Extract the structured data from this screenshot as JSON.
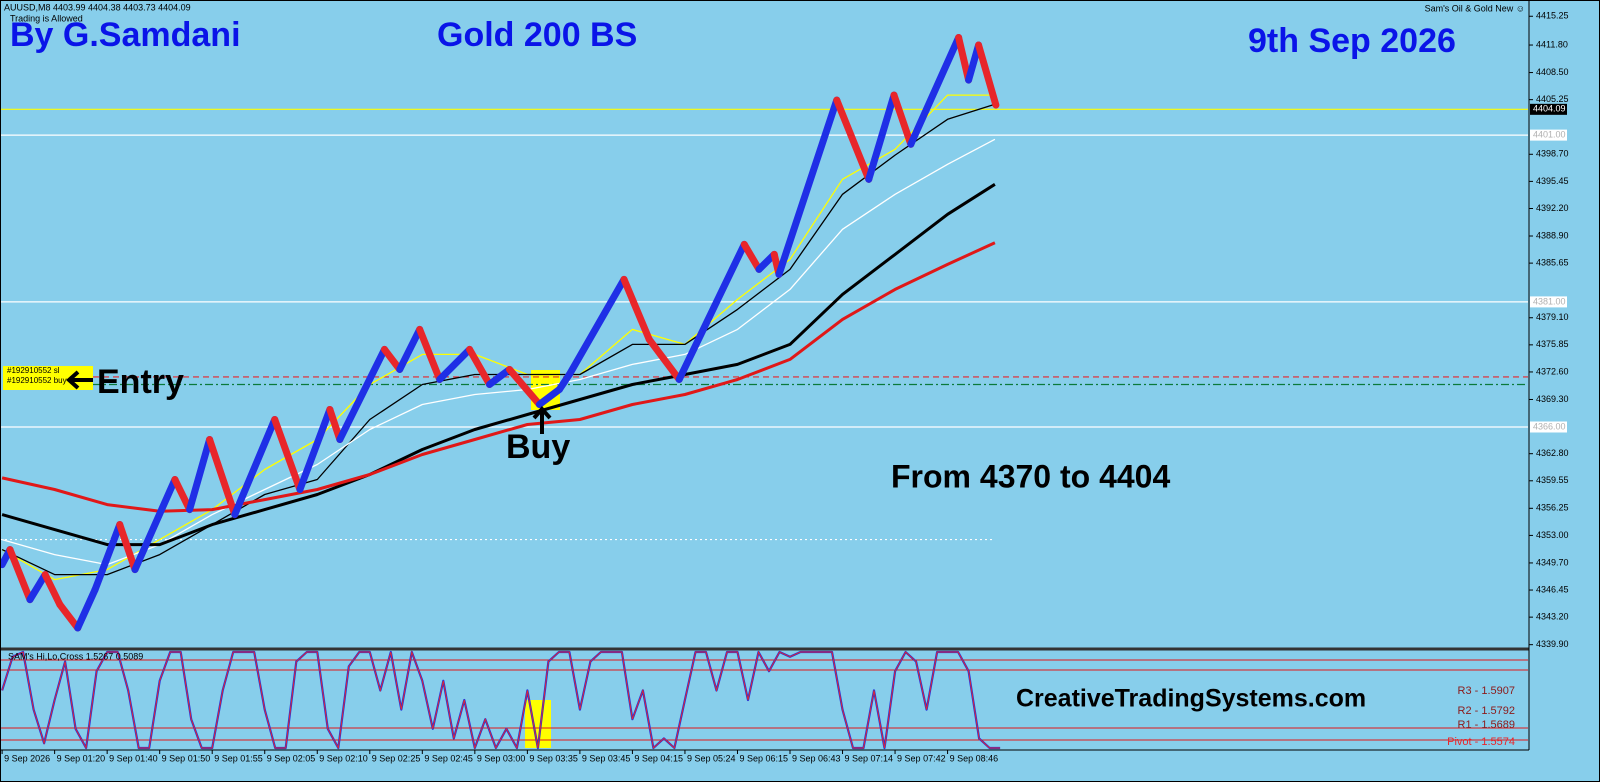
{
  "header": {
    "symbol": "AUUSD,M8 4403.99 4404.38 4403.73 4404.09",
    "status": "Trading is Allowed",
    "indicator": "Sam's Oil & Gold New ☺"
  },
  "chart_data": [
    {
      "type": "line",
      "title": "Gold 200 BS",
      "author": "By G.Samdani",
      "date": "9th Sep 2026",
      "annotations": {
        "entry": "Entry",
        "buy": "Buy",
        "range": "From 4370 to 4404",
        "site": "CreativeTradingSystems.com"
      },
      "xlim": [
        -0.4,
        290.5
      ],
      "xticks": [
        {
          "value": 0,
          "label": "9 Sep 2026"
        },
        {
          "value": 10,
          "label": "9 Sep 01:20"
        },
        {
          "value": 20,
          "label": "9 Sep 01:40"
        },
        {
          "value": 30,
          "label": "9 Sep 01:50"
        },
        {
          "value": 40,
          "label": "9 Sep 01:55"
        },
        {
          "value": 50,
          "label": "9 Sep 02:05"
        },
        {
          "value": 60,
          "label": "9 Sep 02:10"
        },
        {
          "value": 70,
          "label": "9 Sep 02:25"
        },
        {
          "value": 80,
          "label": "9 Sep 02:45"
        },
        {
          "value": 90,
          "label": "9 Sep 03:00"
        },
        {
          "value": 100,
          "label": "9 Sep 03:35"
        },
        {
          "value": 110,
          "label": "9 Sep 03:45"
        },
        {
          "value": 120,
          "label": "9 Sep 04:15"
        },
        {
          "value": 130,
          "label": "9 Sep 05:24"
        },
        {
          "value": 140,
          "label": "9 Sep 06:15"
        },
        {
          "value": 150,
          "label": "9 Sep 06:43"
        },
        {
          "value": 160,
          "label": "9 Sep 07:14"
        },
        {
          "value": 170,
          "label": "9 Sep 07:42"
        },
        {
          "value": 180,
          "label": "9 Sep 08:46"
        }
      ],
      "ylim": [
        4339.5,
        4417.2
      ],
      "yticks": [
        4415.25,
        {
          "value": 4411.8,
          "label": "4411.80"
        },
        {
          "value": 4408.5,
          "label": "4408.50"
        },
        4405.25,
        {
          "value": 4398.7,
          "label": "4398.70"
        },
        4395.45,
        {
          "value": 4392.2,
          "label": "4392.20"
        },
        {
          "value": 4388.9,
          "label": "4388.90"
        },
        4385.65,
        {
          "value": 4379.1,
          "label": "4379.10"
        },
        4375.85,
        {
          "value": 4372.6,
          "label": "4372.60"
        },
        {
          "value": 4369.3,
          "label": "4369.30"
        },
        {
          "value": 4362.8,
          "label": "4362.80"
        },
        4359.55,
        4356.25,
        {
          "value": 4353,
          "label": "4353.00"
        },
        {
          "value": 4349.7,
          "label": "4349.70"
        },
        4346.45,
        {
          "value": 4343.2,
          "label": "4343.20"
        },
        {
          "value": 4339.9,
          "label": "4339.90"
        }
      ],
      "series": [
        {
          "style": "renko",
          "up_color": "#1f2fe6",
          "down_color": "#e8262a",
          "x": [
            0,
            1.5,
            5.3,
            8.2,
            11,
            14.4,
            17.7,
            22.4,
            25.3,
            32.9,
            35.7,
            39.5,
            44.3,
            51.9,
            56.7,
            62.4,
            64.3,
            72.8,
            75.7,
            79.5,
            83.3,
            89,
            92.8,
            96.6,
            102.3,
            106.1,
            108,
            118.4,
            123.2,
            128.9,
            141.3,
            144.1,
            147,
            147.9,
            158.9,
            165,
            169.8,
            173,
            182.1,
            184,
            185.9,
            189.2
          ],
          "values": [
            4349.5,
            4351.3,
            4345.3,
            4348.3,
            4344.7,
            4341.9,
            4346.5,
            4354.3,
            4348.9,
            4359.7,
            4356.1,
            4364.5,
            4355.5,
            4366.9,
            4358.5,
            4368.1,
            4364.5,
            4375.3,
            4372.9,
            4377.7,
            4371.7,
            4375.3,
            4371.1,
            4372.9,
            4368.7,
            4370.5,
            4372.3,
            4383.7,
            4376.5,
            4371.7,
            4387.9,
            4384.9,
            4386.7,
            4384.3,
            4405.2,
            4395.7,
            4405.8,
            4399.9,
            4412.7,
            4407.6,
            4411.8,
            4404.6
          ]
        },
        {
          "color": "#ffff00",
          "width": 1.3,
          "x": [
            0,
            10,
            20,
            30,
            40,
            50,
            60,
            70,
            80,
            90,
            100,
            110,
            120,
            130,
            140,
            150,
            160,
            170,
            180,
            189
          ],
          "values": [
            4351.3,
            4347.7,
            4348.9,
            4352.5,
            4356.1,
            4360.9,
            4364.5,
            4371.1,
            4374.7,
            4374.7,
            4372.3,
            4372.3,
            4377.7,
            4375.9,
            4381.3,
            4386.1,
            4395.7,
            4399.3,
            4405.8,
            4405.8
          ]
        },
        {
          "color": "#000000",
          "width": 1.3,
          "x": [
            0,
            10,
            20,
            30,
            40,
            50,
            60,
            70,
            80,
            90,
            100,
            110,
            120,
            130,
            140,
            150,
            160,
            170,
            180,
            189
          ],
          "values": [
            4351.3,
            4348.3,
            4348.3,
            4350.7,
            4354.3,
            4357.9,
            4359.7,
            4366.9,
            4371.1,
            4372.3,
            4372.3,
            4372.3,
            4375.9,
            4375.9,
            4380.1,
            4384.9,
            4393.9,
            4398.6,
            4402.9,
            4404.7
          ]
        },
        {
          "color": "#ffffff",
          "width": 1.3,
          "x": [
            0,
            10,
            20,
            30,
            40,
            50,
            60,
            70,
            80,
            90,
            100,
            110,
            120,
            130,
            140,
            150,
            160,
            170,
            180,
            189
          ],
          "values": [
            4352.5,
            4350.7,
            4349.5,
            4351.9,
            4355.5,
            4358.5,
            4361.5,
            4365.7,
            4368.7,
            4369.9,
            4370.5,
            4371.7,
            4373.5,
            4374.7,
            4377.7,
            4382.5,
            4389.7,
            4393.9,
            4397.5,
            4400.5
          ]
        },
        {
          "color": "#000000",
          "width": 3,
          "x": [
            0,
            10,
            20,
            30,
            40,
            50,
            60,
            70,
            80,
            90,
            100,
            110,
            120,
            130,
            140,
            150,
            160,
            170,
            180,
            189
          ],
          "values": [
            4355.5,
            4353.7,
            4351.9,
            4351.9,
            4354.3,
            4356.1,
            4357.9,
            4360.3,
            4363.3,
            4365.7,
            4367.5,
            4369.3,
            4371.1,
            4372.3,
            4373.5,
            4375.9,
            4381.9,
            4386.7,
            4391.5,
            4395.1
          ]
        },
        {
          "color": "#e01818",
          "width": 3,
          "x": [
            0,
            10,
            20,
            30,
            40,
            50,
            60,
            70,
            80,
            90,
            100,
            110,
            120,
            130,
            140,
            150,
            160,
            170,
            180,
            189
          ],
          "values": [
            4359.9,
            4358.5,
            4356.7,
            4355.9,
            4356.1,
            4357.3,
            4358.5,
            4360.3,
            4362.7,
            4364.5,
            4366.3,
            4366.9,
            4368.7,
            4369.9,
            4371.7,
            4374.1,
            4378.9,
            4382.5,
            4385.5,
            4388.1
          ]
        }
      ],
      "levels": [
        {
          "value": 4404.09,
          "color": "#ffff00",
          "label_bg": "#000000",
          "label_fg": "#ffffff"
        },
        {
          "value": 4401,
          "axis_label": "4401.00",
          "color": "#ffffff",
          "label_bg": "#ffffff",
          "label_fg": "#b0b0b0"
        },
        {
          "value": 4381,
          "axis_label": "4381.00",
          "color": "#ffffff",
          "label_bg": "#ffffff",
          "label_fg": "#b0b0b0"
        },
        {
          "value": 4366,
          "axis_label": "4366.00",
          "color": "#ffffff",
          "label_bg": "#ffffff",
          "label_fg": "#b0b0b0"
        },
        {
          "value": 4372,
          "color": "#e8262a",
          "style": "dash",
          "order": "#192910552 sl"
        },
        {
          "value": 4371.1,
          "color": "#0a7a3a",
          "style": "dashdot",
          "order": "#192910552 buy"
        },
        {
          "value": 4352.5,
          "color": "#ffffff",
          "style": "dot",
          "x_end": 189
        }
      ]
    },
    {
      "type": "line",
      "title": "SAM's Hi,Lo,Cross 1.5267 0.5089",
      "ylim": [
        0,
        100
      ],
      "levels": [
        91.7,
        81.3,
        20.8,
        8.3
      ],
      "pivots": [
        "R3 - 1.5907",
        "R2 - 1.5792",
        "R1 - 1.5689",
        "Pivot - 1.5574"
      ],
      "series": [
        {
          "color": "#2233dd",
          "overlay_color": "#e8262a",
          "x": [
            0,
            2,
            4,
            6,
            8,
            10,
            12,
            14,
            16,
            18,
            20,
            22,
            24,
            26,
            28,
            30,
            32,
            34,
            36,
            38,
            40,
            42,
            44,
            46,
            48,
            50,
            52,
            54,
            56,
            58,
            60,
            62,
            64,
            66,
            68,
            70,
            72,
            74,
            76,
            78,
            80,
            82,
            84,
            86,
            88,
            90,
            92,
            94,
            96,
            98,
            100,
            102,
            104,
            106,
            108,
            110,
            112,
            114,
            116,
            118,
            120,
            122,
            124,
            126,
            128,
            130,
            132,
            134,
            136,
            138,
            140,
            142,
            144,
            146,
            148,
            150,
            152,
            154,
            156,
            158,
            160,
            162,
            164,
            166,
            168,
            170,
            172,
            174,
            176,
            178,
            180,
            182,
            184,
            186,
            188,
            190
          ],
          "values": [
            60,
            95,
            100,
            40,
            5,
            50,
            90,
            20,
            0,
            80,
            100,
            100,
            60,
            0,
            0,
            70,
            100,
            100,
            30,
            0,
            0,
            60,
            100,
            100,
            100,
            40,
            0,
            0,
            90,
            100,
            100,
            20,
            0,
            85,
            100,
            100,
            60,
            100,
            40,
            100,
            70,
            20,
            70,
            10,
            50,
            0,
            30,
            0,
            20,
            0,
            60,
            0,
            90,
            100,
            100,
            40,
            90,
            100,
            100,
            100,
            30,
            60,
            0,
            10,
            0,
            50,
            100,
            100,
            60,
            100,
            100,
            50,
            100,
            80,
            100,
            95,
            100,
            100,
            100,
            100,
            40,
            0,
            0,
            60,
            0,
            80,
            100,
            90,
            40,
            100,
            100,
            100,
            80,
            10,
            0,
            0
          ]
        }
      ]
    }
  ]
}
